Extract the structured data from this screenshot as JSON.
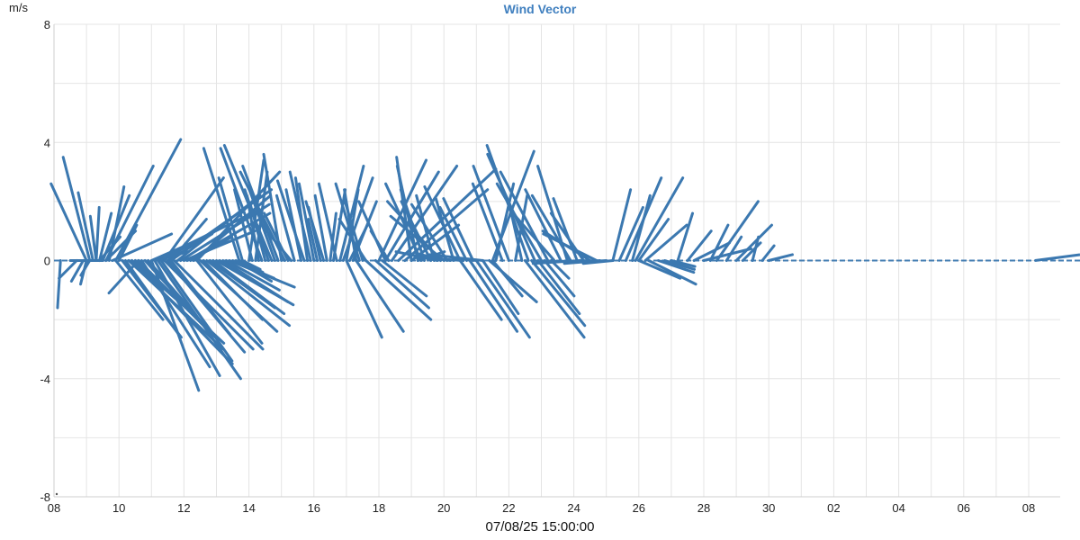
{
  "chart_data": {
    "type": "wind-vector",
    "title": "Wind Vector",
    "ylabel": "m/s",
    "xlabel": "07/08/25 15:00:00",
    "ylim": [
      -8,
      8
    ],
    "yticks": [
      -8,
      -4,
      0,
      4,
      8
    ],
    "xticks": [
      "08",
      "10",
      "12",
      "14",
      "16",
      "18",
      "20",
      "22",
      "24",
      "26",
      "28",
      "30",
      "02",
      "04",
      "06",
      "08"
    ],
    "grid": true,
    "series_color": "#3b78b0",
    "vectors": [
      [
        0.2,
        -0.1,
        -1.6
      ],
      [
        0.5,
        1.1,
        0.0
      ],
      [
        0.7,
        -0.6,
        -0.6
      ],
      [
        0.9,
        -0.4,
        -0.7
      ],
      [
        1.0,
        -0.2,
        -0.8
      ],
      [
        1.1,
        -0.3,
        -0.5
      ],
      [
        1.0,
        -1.2,
        2.6
      ],
      [
        1.1,
        -0.9,
        3.5
      ],
      [
        1.2,
        -0.5,
        2.3
      ],
      [
        1.3,
        -0.2,
        1.5
      ],
      [
        1.3,
        0.1,
        1.8
      ],
      [
        1.4,
        0.4,
        1.6
      ],
      [
        1.4,
        0.7,
        0.8
      ],
      [
        1.5,
        0.9,
        2.2
      ],
      [
        1.6,
        1.0,
        1.0
      ],
      [
        1.6,
        1.6,
        3.2
      ],
      [
        1.7,
        0.5,
        2.5
      ],
      [
        1.8,
        2.0,
        0.9
      ],
      [
        1.9,
        2.2,
        4.1
      ],
      [
        2.0,
        0.6,
        1.2
      ],
      [
        1.9,
        1.6,
        -2.0
      ],
      [
        2.1,
        2.0,
        -2.6
      ],
      [
        2.2,
        1.8,
        -2.5
      ],
      [
        2.4,
        1.6,
        -1.4
      ],
      [
        2.5,
        0.8,
        -0.9
      ],
      [
        2.6,
        -1.0,
        -1.1
      ],
      [
        2.3,
        3.2,
        -3.0
      ],
      [
        2.4,
        3.4,
        -3.5
      ],
      [
        2.5,
        3.0,
        -2.8
      ],
      [
        2.6,
        2.6,
        -2.6
      ],
      [
        2.7,
        2.3,
        -3.6
      ],
      [
        2.8,
        2.0,
        -2.2
      ],
      [
        2.9,
        2.0,
        -2.3
      ],
      [
        3.0,
        1.6,
        0.7
      ],
      [
        3.1,
        3.5,
        1.7
      ],
      [
        3.2,
        1.0,
        0.3
      ],
      [
        3.3,
        1.8,
        1.0
      ],
      [
        3.4,
        2.0,
        2.8
      ],
      [
        3.5,
        1.5,
        0.9
      ],
      [
        3.6,
        1.2,
        1.4
      ],
      [
        3.0,
        1.6,
        -4.4
      ],
      [
        3.1,
        2.2,
        -3.9
      ],
      [
        3.2,
        2.8,
        -4.0
      ],
      [
        3.3,
        2.4,
        -3.4
      ],
      [
        3.4,
        3.0,
        -3.0
      ],
      [
        3.5,
        2.6,
        -3.1
      ],
      [
        3.6,
        2.0,
        -2.5
      ],
      [
        3.7,
        3.0,
        -3.0
      ],
      [
        3.6,
        3.4,
        2.4
      ],
      [
        3.8,
        2.8,
        2.2
      ],
      [
        3.9,
        3.0,
        1.9
      ],
      [
        4.0,
        2.4,
        1.0
      ],
      [
        4.1,
        2.8,
        1.6
      ],
      [
        4.2,
        1.4,
        0.8
      ],
      [
        4.3,
        2.6,
        2.2
      ],
      [
        4.4,
        2.8,
        3.0
      ],
      [
        4.4,
        2.2,
        -2.8
      ],
      [
        4.5,
        2.6,
        -2.4
      ],
      [
        4.6,
        2.0,
        -2.0
      ],
      [
        4.7,
        2.8,
        -2.2
      ],
      [
        4.8,
        2.2,
        -1.6
      ],
      [
        4.9,
        2.4,
        -1.8
      ],
      [
        5.0,
        2.6,
        -1.5
      ],
      [
        5.1,
        2.0,
        -1.2
      ],
      [
        5.2,
        2.2,
        -1.4
      ],
      [
        5.3,
        1.8,
        -1.0
      ],
      [
        5.4,
        2.2,
        -0.9
      ],
      [
        5.5,
        1.4,
        -0.6
      ],
      [
        5.6,
        1.2,
        -0.7
      ],
      [
        5.7,
        0.8,
        -0.4
      ],
      [
        5.8,
        0.6,
        -0.3
      ],
      [
        5.7,
        -1.2,
        3.8
      ],
      [
        5.8,
        -0.8,
        2.8
      ],
      [
        6.0,
        0.5,
        3.4
      ],
      [
        6.1,
        -0.6,
        2.4
      ],
      [
        6.2,
        0.4,
        3.0
      ],
      [
        6.3,
        -0.4,
        2.2
      ],
      [
        6.4,
        -1.4,
        3.8
      ],
      [
        6.5,
        -0.5,
        1.9
      ],
      [
        6.6,
        -0.8,
        2.4
      ],
      [
        6.7,
        -1.6,
        3.9
      ],
      [
        6.8,
        -0.9,
        2.5
      ],
      [
        6.9,
        -1.2,
        3.2
      ],
      [
        7.0,
        -0.6,
        3.6
      ],
      [
        7.1,
        -1.5,
        3.0
      ],
      [
        7.2,
        -0.8,
        1.6
      ],
      [
        7.3,
        -1.0,
        1.2
      ],
      [
        7.4,
        -0.6,
        2.2
      ],
      [
        7.6,
        -0.5,
        2.4
      ],
      [
        7.7,
        -0.9,
        2.7
      ],
      [
        7.8,
        -0.4,
        2.8
      ],
      [
        7.9,
        -0.7,
        3.0
      ],
      [
        8.0,
        -0.5,
        2.6
      ],
      [
        8.1,
        -0.3,
        1.4
      ],
      [
        8.2,
        -0.4,
        1.8
      ],
      [
        8.3,
        -0.6,
        2.0
      ],
      [
        8.4,
        -0.4,
        2.2
      ],
      [
        8.5,
        0.2,
        1.6
      ],
      [
        8.6,
        0.4,
        2.4
      ],
      [
        8.7,
        -0.6,
        2.6
      ],
      [
        8.8,
        0.8,
        3.2
      ],
      [
        8.9,
        1.0,
        2.8
      ],
      [
        9.0,
        0.4,
        2.4
      ],
      [
        9.1,
        0.6,
        1.2
      ],
      [
        9.2,
        0.8,
        2.0
      ],
      [
        9.3,
        -0.4,
        2.4
      ],
      [
        9.4,
        -0.8,
        2.6
      ],
      [
        9.5,
        -0.6,
        2.0
      ],
      [
        9.6,
        -0.9,
        1.4
      ],
      [
        9.0,
        1.2,
        -2.6
      ],
      [
        9.3,
        1.6,
        -2.4
      ],
      [
        9.6,
        2.2,
        -2.0
      ],
      [
        9.9,
        1.8,
        -1.6
      ],
      [
        10.1,
        1.5,
        -1.2
      ],
      [
        10.2,
        -0.9,
        2.0
      ],
      [
        10.3,
        -0.6,
        1.0
      ],
      [
        10.0,
        1.6,
        3.4
      ],
      [
        10.2,
        1.8,
        3.0
      ],
      [
        10.4,
        2.2,
        3.2
      ],
      [
        10.6,
        3.3,
        3.1
      ],
      [
        10.8,
        2.8,
        2.4
      ],
      [
        11.0,
        1.6,
        1.2
      ],
      [
        11.2,
        0.9,
        0.3
      ],
      [
        11.0,
        -0.5,
        3.5
      ],
      [
        11.2,
        -0.7,
        3.2
      ],
      [
        11.3,
        -1.2,
        2.6
      ],
      [
        11.4,
        -0.8,
        2.4
      ],
      [
        11.6,
        -1.0,
        2.0
      ],
      [
        11.7,
        -0.6,
        2.2
      ],
      [
        11.9,
        -1.8,
        2.0
      ],
      [
        12.0,
        -1.8,
        1.5
      ],
      [
        12.1,
        -1.2,
        1.9
      ],
      [
        12.3,
        -0.6,
        2.1
      ],
      [
        12.5,
        -1.2,
        2.5
      ],
      [
        12.7,
        -0.9,
        1.8
      ],
      [
        12.9,
        -1.0,
        2.1
      ],
      [
        11.8,
        -1.4,
        0.3
      ],
      [
        12.2,
        -1.0,
        0.2
      ],
      [
        12.6,
        -1.6,
        0.1
      ],
      [
        13.0,
        -0.8,
        0.1
      ],
      [
        13.2,
        -1.8,
        0.2
      ],
      [
        12.5,
        1.4,
        -2.0
      ],
      [
        12.8,
        1.6,
        -2.4
      ],
      [
        13.0,
        1.8,
        -2.6
      ],
      [
        13.2,
        1.2,
        -1.8
      ],
      [
        13.4,
        1.6,
        -1.4
      ],
      [
        13.5,
        1.0,
        -1.2
      ],
      [
        13.5,
        1.4,
        3.7
      ],
      [
        13.6,
        0.6,
        2.6
      ],
      [
        13.8,
        -1.0,
        2.6
      ],
      [
        14.0,
        -1.2,
        3.2
      ],
      [
        14.2,
        0.4,
        2.2
      ],
      [
        14.4,
        -0.4,
        1.8
      ],
      [
        14.5,
        2.0,
        -2.6
      ],
      [
        14.7,
        1.8,
        -2.2
      ],
      [
        14.9,
        1.4,
        -1.8
      ],
      [
        15.1,
        1.0,
        -1.2
      ],
      [
        15.3,
        0.6,
        -0.6
      ],
      [
        14.6,
        -1.4,
        3.9
      ],
      [
        14.8,
        -1.6,
        3.6
      ],
      [
        15.0,
        -1.5,
        2.6
      ],
      [
        15.2,
        -1.6,
        3.0
      ],
      [
        15.4,
        -1.4,
        1.6
      ],
      [
        15.6,
        -1.2,
        2.4
      ],
      [
        15.8,
        -1.0,
        3.2
      ],
      [
        15.9,
        -1.3,
        2.2
      ],
      [
        16.1,
        -0.8,
        2.1
      ],
      [
        16.3,
        -1.1,
        1.6
      ],
      [
        16.5,
        -1.6,
        1.0
      ],
      [
        16.7,
        -1.8,
        0.9
      ],
      [
        16.2,
        -1.6,
        -0.1
      ],
      [
        16.5,
        -1.8,
        -0.05
      ],
      [
        16.8,
        -1.2,
        -0.1
      ],
      [
        17.0,
        -0.8,
        -0.05
      ],
      [
        17.2,
        -1.0,
        -0.1
      ],
      [
        17.2,
        0.6,
        2.4
      ],
      [
        17.4,
        0.8,
        1.8
      ],
      [
        17.6,
        1.2,
        2.8
      ],
      [
        17.8,
        0.6,
        2.2
      ],
      [
        17.9,
        1.6,
        2.8
      ],
      [
        18.0,
        1.0,
        1.4
      ],
      [
        18.2,
        1.4,
        1.2
      ],
      [
        18.0,
        1.4,
        -0.6
      ],
      [
        18.3,
        1.6,
        -0.8
      ],
      [
        18.6,
        1.2,
        -0.4
      ],
      [
        18.8,
        1.0,
        -0.3
      ],
      [
        19.0,
        0.8,
        -0.2
      ],
      [
        19.2,
        0.5,
        1.6
      ],
      [
        19.5,
        0.8,
        1.0
      ],
      [
        19.7,
        1.2,
        0.6
      ],
      [
        20.0,
        1.6,
        0.4
      ],
      [
        20.2,
        0.6,
        1.2
      ],
      [
        20.4,
        1.4,
        2.0
      ],
      [
        20.7,
        0.5,
        0.8
      ],
      [
        21.0,
        1.2,
        1.2
      ],
      [
        21.2,
        0.6,
        0.6
      ],
      [
        21.5,
        0.2,
        0.8
      ],
      [
        21.8,
        0.4,
        0.5
      ],
      [
        22.0,
        0.8,
        0.2
      ]
    ]
  }
}
